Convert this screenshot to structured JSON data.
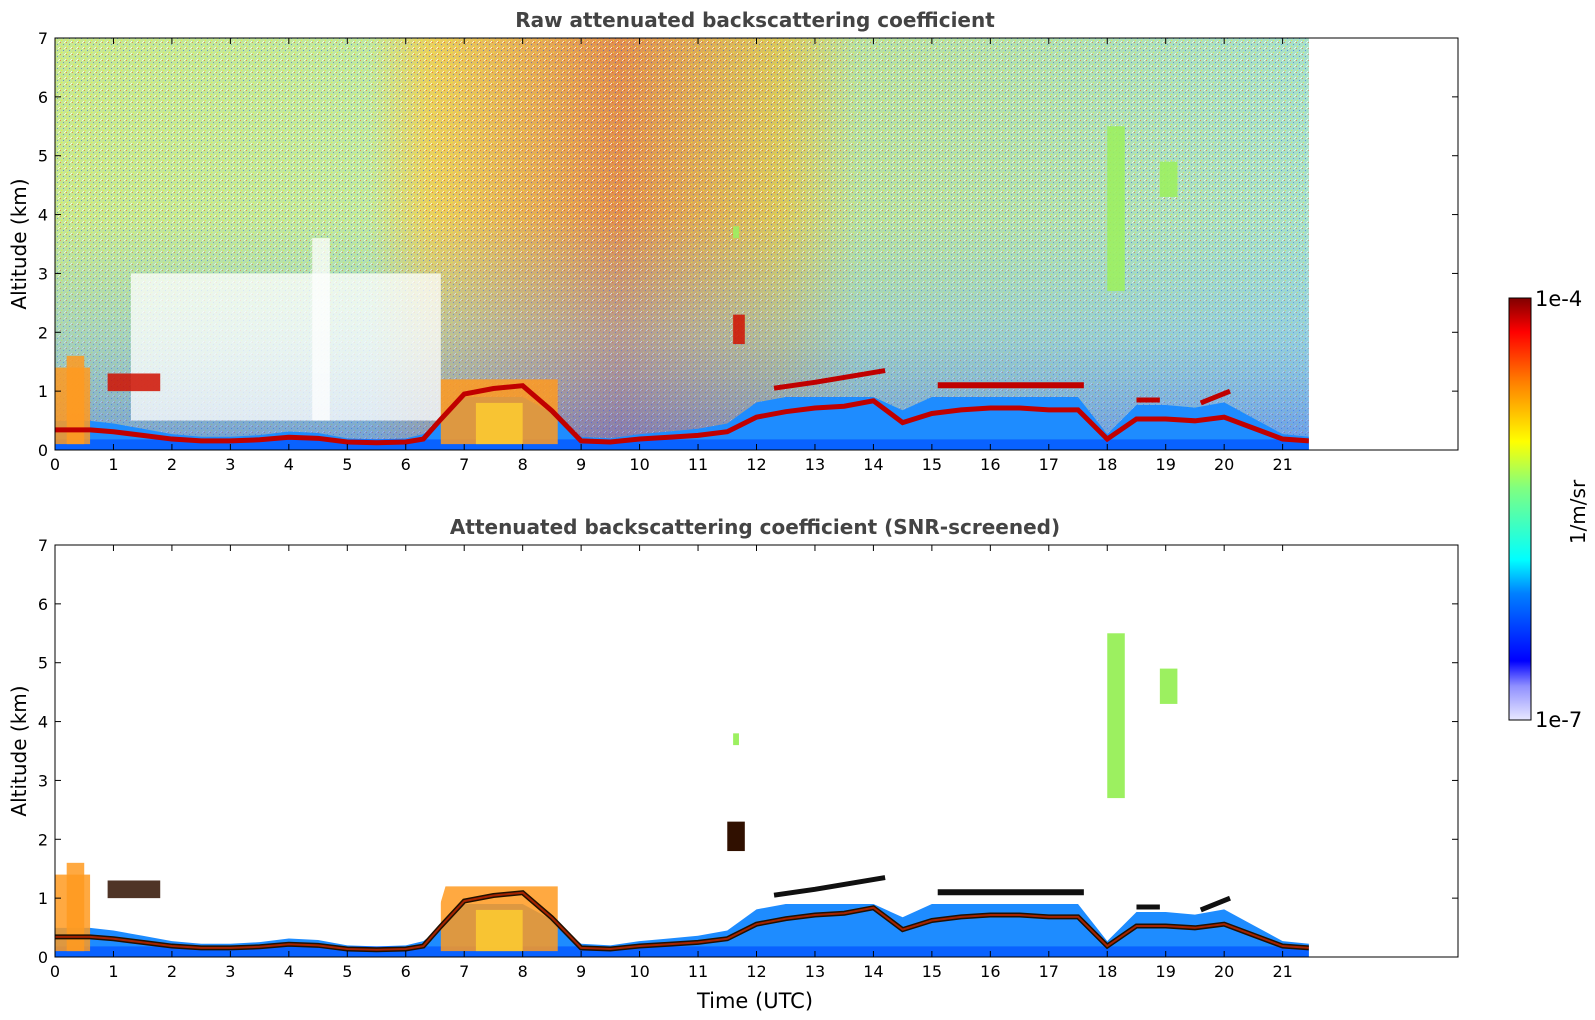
{
  "figure": {
    "xlabel": "Time (UTC)",
    "ylabel": "Altitude (km)",
    "colorbar": {
      "label": "1/m/sr",
      "max_label": "1e-4",
      "min_label": "1e-7",
      "scale": "log",
      "colormap": "jet",
      "range": [
        1e-07,
        0.0001
      ]
    }
  },
  "chart_data": [
    {
      "type": "heatmap",
      "title": "Raw attenuated backscattering coefficient",
      "xlabel": "",
      "ylabel": "Altitude (km)",
      "xlim": [
        0,
        24
      ],
      "ylim": [
        0,
        7
      ],
      "x_ticks": [
        0,
        1,
        2,
        3,
        4,
        5,
        6,
        7,
        8,
        9,
        10,
        11,
        12,
        13,
        14,
        15,
        16,
        17,
        18,
        19,
        20,
        21
      ],
      "y_ticks": [
        0,
        1,
        2,
        3,
        4,
        5,
        6,
        7
      ],
      "data_extent_x": [
        0,
        21.45
      ],
      "boundary_layer_top_km": [
        [
          0,
          0.55
        ],
        [
          0.6,
          0.55
        ],
        [
          1,
          0.5
        ],
        [
          1.5,
          0.4
        ],
        [
          2,
          0.3
        ],
        [
          2.5,
          0.25
        ],
        [
          3,
          0.25
        ],
        [
          3.5,
          0.28
        ],
        [
          4,
          0.35
        ],
        [
          4.5,
          0.32
        ],
        [
          5,
          0.22
        ],
        [
          5.5,
          0.2
        ],
        [
          6,
          0.22
        ],
        [
          6.3,
          0.3
        ],
        [
          6.6,
          0.55
        ],
        [
          7,
          1.0
        ],
        [
          7.5,
          1.1
        ],
        [
          8,
          1.15
        ],
        [
          8.5,
          0.7
        ],
        [
          9,
          0.25
        ],
        [
          9.5,
          0.22
        ],
        [
          10,
          0.3
        ],
        [
          10.5,
          0.35
        ],
        [
          11,
          0.4
        ],
        [
          11.5,
          0.5
        ],
        [
          12,
          0.9
        ],
        [
          12.5,
          1.05
        ],
        [
          13,
          1.15
        ],
        [
          13.5,
          1.2
        ],
        [
          14,
          1.35
        ],
        [
          14.5,
          0.75
        ],
        [
          15,
          1.0
        ],
        [
          15.5,
          1.1
        ],
        [
          16,
          1.15
        ],
        [
          16.5,
          1.15
        ],
        [
          17,
          1.1
        ],
        [
          17.5,
          1.1
        ],
        [
          18,
          0.3
        ],
        [
          18.5,
          0.85
        ],
        [
          19,
          0.85
        ],
        [
          19.5,
          0.8
        ],
        [
          20,
          0.9
        ],
        [
          20.5,
          0.6
        ],
        [
          21,
          0.3
        ],
        [
          21.45,
          0.25
        ]
      ],
      "cloud_features": [
        {
          "x": [
            0.9,
            1.8
          ],
          "alt_km": [
            1.0,
            1.3
          ]
        },
        {
          "x": [
            11.6,
            11.8
          ],
          "alt_km": [
            1.8,
            2.3
          ]
        },
        {
          "x": [
            11.6,
            11.7
          ],
          "alt_km": [
            3.6,
            3.8
          ]
        },
        {
          "x": [
            18.0,
            18.3
          ],
          "alt_km": [
            2.7,
            5.5
          ]
        },
        {
          "x": [
            18.9,
            19.2
          ],
          "alt_km": [
            4.3,
            4.9
          ]
        }
      ]
    },
    {
      "type": "heatmap",
      "title": "Attenuated backscattering coefficient (SNR-screened)",
      "xlabel": "Time (UTC)",
      "ylabel": "Altitude (km)",
      "xlim": [
        0,
        24
      ],
      "ylim": [
        0,
        7
      ],
      "x_ticks": [
        0,
        1,
        2,
        3,
        4,
        5,
        6,
        7,
        8,
        9,
        10,
        11,
        12,
        13,
        14,
        15,
        16,
        17,
        18,
        19,
        20,
        21
      ],
      "y_ticks": [
        0,
        1,
        2,
        3,
        4,
        5,
        6,
        7
      ],
      "data_extent_x": [
        0,
        21.45
      ],
      "cloud_features": [
        {
          "x": [
            0.9,
            1.8
          ],
          "alt_km": [
            1.0,
            1.3
          ]
        },
        {
          "x": [
            11.5,
            11.8
          ],
          "alt_km": [
            1.8,
            2.3
          ]
        },
        {
          "x": [
            11.6,
            11.7
          ],
          "alt_km": [
            3.6,
            3.8
          ]
        },
        {
          "x": [
            18.0,
            18.3
          ],
          "alt_km": [
            2.7,
            5.5
          ]
        },
        {
          "x": [
            18.9,
            19.2
          ],
          "alt_km": [
            4.3,
            4.9
          ]
        }
      ]
    }
  ]
}
